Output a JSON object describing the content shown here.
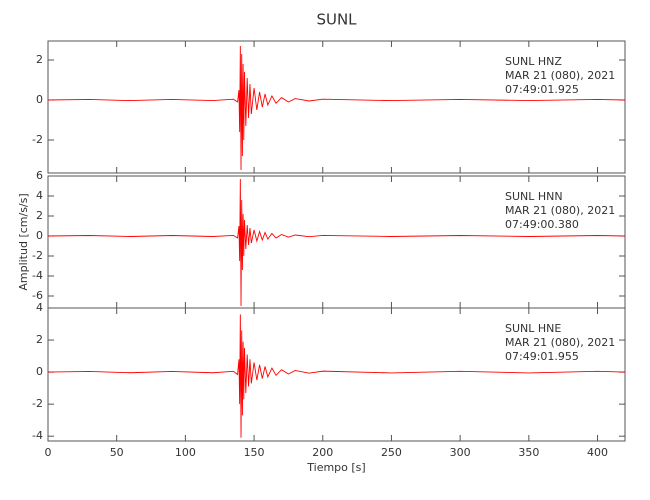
{
  "chart_data": [
    {
      "type": "line",
      "title": "SUNL",
      "color": "#ff0000",
      "annotations": [
        "SUNL  HNZ",
        "MAR 21 (080), 2021",
        "07:49:01.925"
      ],
      "x": [
        0,
        30,
        60,
        90,
        120,
        135,
        138,
        139,
        139.5,
        140,
        140.5,
        141,
        141.5,
        142,
        142.5,
        143,
        144,
        145,
        146,
        147,
        148,
        150,
        152,
        154,
        156,
        158,
        160,
        163,
        166,
        170,
        175,
        180,
        190,
        200,
        250,
        300,
        350,
        400,
        420
      ],
      "values": [
        0,
        0.03,
        -0.03,
        0.03,
        -0.03,
        0.04,
        -0.1,
        0.5,
        -1.6,
        2.7,
        -3.5,
        2.3,
        -2.8,
        1.8,
        -2.0,
        1.4,
        -1.3,
        1.1,
        -0.9,
        0.8,
        -0.7,
        0.6,
        -0.5,
        0.4,
        -0.35,
        0.3,
        -0.25,
        0.2,
        -0.16,
        0.12,
        -0.1,
        0.07,
        -0.05,
        0.04,
        -0.03,
        0.03,
        -0.03,
        0.03,
        0
      ],
      "xlim": [
        0,
        420
      ],
      "ylim": [
        -3.65,
        2.95
      ],
      "yticks": [
        -2,
        0,
        2
      ]
    },
    {
      "type": "line",
      "ylabel": "Amplitud [cm/s/s]",
      "color": "#ff0000",
      "annotations": [
        "SUNL  HNN",
        "MAR 21 (080), 2021",
        "07:49:00.380"
      ],
      "x": [
        0,
        30,
        60,
        90,
        120,
        135,
        138,
        139,
        139.5,
        140,
        140.5,
        141,
        141.5,
        142,
        142.5,
        143,
        144,
        145,
        146,
        147,
        148,
        150,
        152,
        154,
        156,
        158,
        160,
        163,
        166,
        170,
        175,
        180,
        190,
        200,
        250,
        300,
        350,
        400,
        420
      ],
      "values": [
        0,
        0.05,
        -0.05,
        0.05,
        -0.05,
        0.06,
        -0.2,
        1.0,
        -2.5,
        5.7,
        -7.0,
        3.6,
        -3.4,
        2.2,
        -2.0,
        1.6,
        -1.3,
        1.1,
        -0.9,
        0.8,
        -0.7,
        0.6,
        -0.5,
        0.45,
        -0.4,
        0.35,
        -0.3,
        0.25,
        -0.2,
        0.15,
        -0.12,
        0.1,
        -0.07,
        0.06,
        -0.05,
        0.05,
        -0.05,
        0.05,
        0
      ],
      "xlim": [
        0,
        420
      ],
      "ylim": [
        -7.2,
        6
      ],
      "yticks": [
        -6,
        -4,
        -2,
        0,
        2,
        4,
        6
      ]
    },
    {
      "type": "line",
      "xlabel": "Tiempo [s]",
      "color": "#ff0000",
      "annotations": [
        "SUNL  HNE",
        "MAR 21 (080), 2021",
        "07:49:01.955"
      ],
      "x": [
        0,
        30,
        60,
        90,
        120,
        135,
        138,
        139,
        139.5,
        140,
        140.5,
        141,
        141.5,
        142,
        142.5,
        143,
        144,
        145,
        146,
        147,
        148,
        150,
        152,
        154,
        156,
        158,
        160,
        163,
        166,
        170,
        175,
        180,
        190,
        200,
        250,
        300,
        350,
        400,
        420
      ],
      "values": [
        0,
        0.04,
        -0.04,
        0.04,
        -0.04,
        0.05,
        -0.15,
        0.8,
        -2.0,
        3.6,
        -4.1,
        2.6,
        -2.7,
        1.9,
        -1.7,
        1.5,
        -1.3,
        1.1,
        -0.9,
        0.8,
        -0.7,
        0.6,
        -0.5,
        0.45,
        -0.4,
        0.35,
        -0.3,
        0.25,
        -0.2,
        0.15,
        -0.12,
        0.1,
        -0.07,
        0.06,
        -0.05,
        0.05,
        -0.05,
        0.05,
        0
      ],
      "xlim": [
        0,
        420
      ],
      "ylim": [
        -4.3,
        4
      ],
      "yticks": [
        -4,
        -2,
        0,
        2,
        4
      ],
      "xticks": [
        0,
        50,
        100,
        150,
        200,
        250,
        300,
        350,
        400
      ]
    }
  ]
}
